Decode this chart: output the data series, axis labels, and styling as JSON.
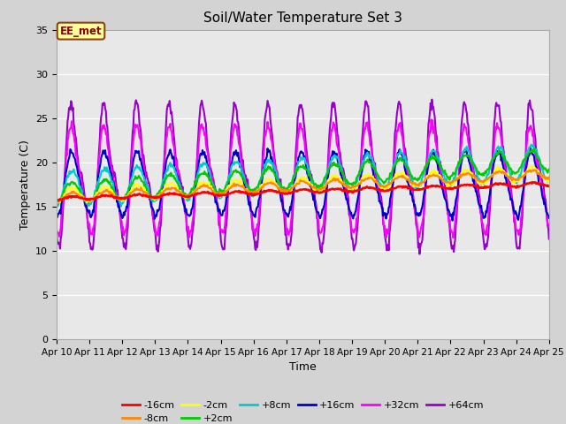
{
  "title": "Soil/Water Temperature Set 3",
  "xlabel": "Time",
  "ylabel": "Temperature (C)",
  "ylim": [
    0,
    35
  ],
  "xlim": [
    0,
    15
  ],
  "yticks": [
    0,
    5,
    10,
    15,
    20,
    25,
    30,
    35
  ],
  "xtick_labels": [
    "Apr 10",
    "Apr 11",
    "Apr 12",
    "Apr 13",
    "Apr 14",
    "Apr 15",
    "Apr 16",
    "Apr 17",
    "Apr 18",
    "Apr 19",
    "Apr 20",
    "Apr 21",
    "Apr 22",
    "Apr 23",
    "Apr 24",
    "Apr 25"
  ],
  "annotation_text": "EE_met",
  "annotation_box_color": "#ffff99",
  "annotation_text_color": "#8b0000",
  "annotation_border_color": "#8b4513",
  "fig_bg_color": "#d3d3d3",
  "plot_bg_color": "#e8e8e8",
  "series_colors": {
    "-16cm": "#ff0000",
    "-8cm": "#ff8800",
    "-2cm": "#ffff00",
    "+2cm": "#00cc00",
    "+8cm": "#00cccc",
    "+16cm": "#0000cc",
    "+32cm": "#ff00ff",
    "+64cm": "#9900cc"
  },
  "series_lw": {
    "-16cm": 1.8,
    "-8cm": 1.5,
    "-2cm": 1.5,
    "+2cm": 1.5,
    "+8cm": 1.5,
    "+16cm": 1.5,
    "+32cm": 1.5,
    "+64cm": 1.5
  }
}
